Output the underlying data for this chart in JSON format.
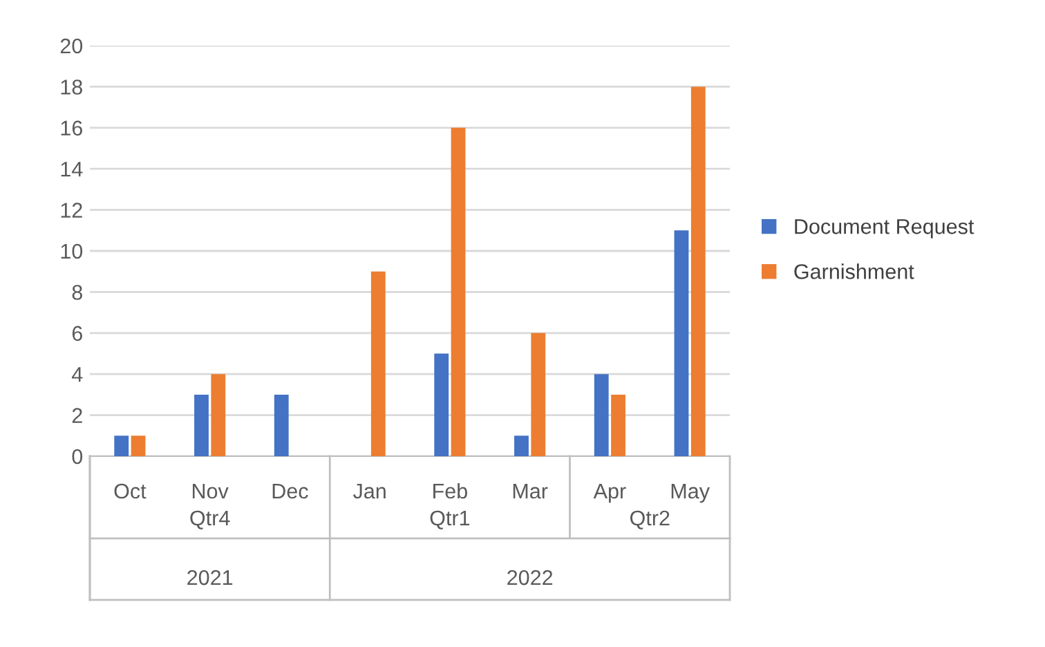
{
  "chart_data": {
    "type": "bar",
    "categories": [
      "Oct",
      "Nov",
      "Dec",
      "Jan",
      "Feb",
      "Mar",
      "Apr",
      "May"
    ],
    "series": [
      {
        "name": "Document Request",
        "color": "#4472c4",
        "values": [
          1,
          3,
          3,
          null,
          5,
          1,
          4,
          11
        ]
      },
      {
        "name": "Garnishment",
        "color": "#ed7d31",
        "values": [
          1,
          4,
          null,
          9,
          16,
          6,
          3,
          18
        ]
      }
    ],
    "ylim": [
      0,
      20
    ],
    "yticks": [
      0,
      2,
      4,
      6,
      8,
      10,
      12,
      14,
      16,
      18,
      20
    ],
    "grid": "y",
    "legend": "right",
    "annotations": [
      "Qtr4",
      "Qtr1",
      "Qtr2",
      "2021",
      "2022"
    ]
  }
}
